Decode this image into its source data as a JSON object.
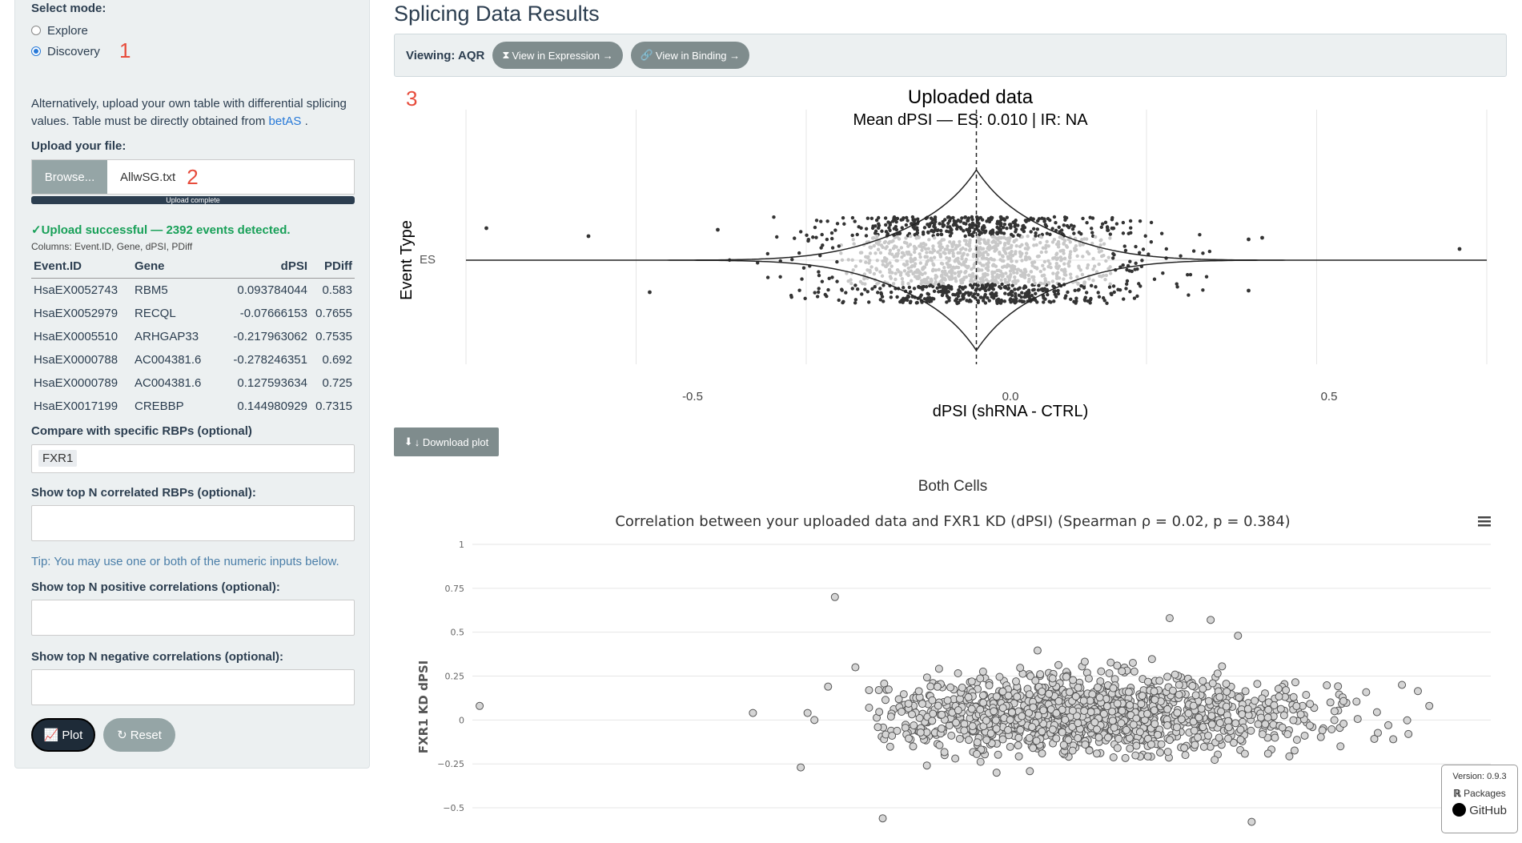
{
  "sidebar": {
    "mode_label": "Select mode:",
    "modes": [
      {
        "label": "Explore",
        "selected": false
      },
      {
        "label": "Discovery",
        "selected": true
      }
    ],
    "marker1": "1",
    "alt_text": "Alternatively, upload your own table with differential splicing values. Table must be directly obtained from ",
    "alt_link": "betAS",
    "alt_end": ".",
    "upload_label": "Upload your file:",
    "browse_label": "Browse...",
    "file_name": "AllwSG.txt",
    "marker2": "2",
    "progress_label": "Upload complete",
    "success_text": "✓Upload successful — 2392 events detected.",
    "columns_text": "Columns: Event.ID, Gene, dPSI, PDiff",
    "table": {
      "headers": [
        "Event.ID",
        "Gene",
        "dPSI",
        "PDiff"
      ],
      "rows": [
        [
          "HsaEX0052743",
          "RBM5",
          "0.093784044",
          "0.583"
        ],
        [
          "HsaEX0052979",
          "RECQL",
          "-0.07666153",
          "0.7655"
        ],
        [
          "HsaEX0005510",
          "ARHGAP33",
          "-0.217963062",
          "0.7535"
        ],
        [
          "HsaEX0000788",
          "AC004381.6",
          "-0.278246351",
          "0.692"
        ],
        [
          "HsaEX0000789",
          "AC004381.6",
          "0.127593634",
          "0.725"
        ],
        [
          "HsaEX0017199",
          "CREBBP",
          "0.144980929",
          "0.7315"
        ]
      ]
    },
    "compare_label": "Compare with specific RBPs (optional)",
    "compare_tag": "FXR1",
    "topn_label": "Show top N correlated RBPs (optional):",
    "tip_text": "Tip: You may use one or both of the numeric inputs below.",
    "pos_label": "Show top N positive correlations (optional):",
    "neg_label": "Show top N negative correlations (optional):",
    "plot_label": "Plot",
    "reset_label": "Reset"
  },
  "main": {
    "title": "Splicing Data Results",
    "viewing_label": "Viewing: AQR",
    "view_expression": "View in Expression →",
    "view_binding": "View in Binding →",
    "marker3": "3",
    "download_label": "↓ Download plot"
  },
  "chart_data": [
    {
      "type": "violin",
      "title": "Uploaded data",
      "subtitle": "Mean dPSI — ES: 0.010 | IR: NA",
      "xlabel": "dPSI (shRNA - CTRL)",
      "ylabel": "Event Type",
      "categories": [
        "ES"
      ],
      "xlim": [
        -0.75,
        0.75
      ],
      "xticks": [
        "-0.5",
        "0.0",
        "0.5"
      ],
      "mean_line": 0.0,
      "grid": true
    },
    {
      "type": "scatter",
      "header": "Both Cells",
      "title": "Correlation between your uploaded data and FXR1 KD (dPSI) (Spearman ρ = 0.02, p = 0.384)",
      "ylabel": "FXR1 KD dPSI",
      "yticks": [
        "1",
        "0.75",
        "0.5",
        "0.25",
        "0",
        "−0.25",
        "−0.5"
      ],
      "ylim": [
        -0.55,
        1
      ],
      "xlim": [
        -0.75,
        0.75
      ],
      "outliers": [
        [
          -0.73,
          0.08
        ],
        [
          -0.33,
          0.04
        ],
        [
          -0.21,
          0.7
        ],
        [
          -0.22,
          0.19
        ],
        [
          -0.24,
          0.0
        ],
        [
          -0.25,
          0.04
        ],
        [
          -0.26,
          -0.27
        ],
        [
          -0.18,
          0.3
        ],
        [
          -0.16,
          0.17
        ],
        [
          -0.16,
          0.07
        ],
        [
          -0.14,
          -0.56
        ],
        [
          0.28,
          0.58
        ],
        [
          0.34,
          0.57
        ],
        [
          0.38,
          0.48
        ],
        [
          0.62,
          0.2
        ],
        [
          0.66,
          0.08
        ],
        [
          0.6,
          -0.03
        ],
        [
          0.53,
          -0.15
        ],
        [
          0.4,
          -0.58
        ]
      ],
      "grid": true
    }
  ],
  "footer": {
    "version": "Version: 0.9.3",
    "packages": "Packages",
    "github": "GitHub"
  }
}
